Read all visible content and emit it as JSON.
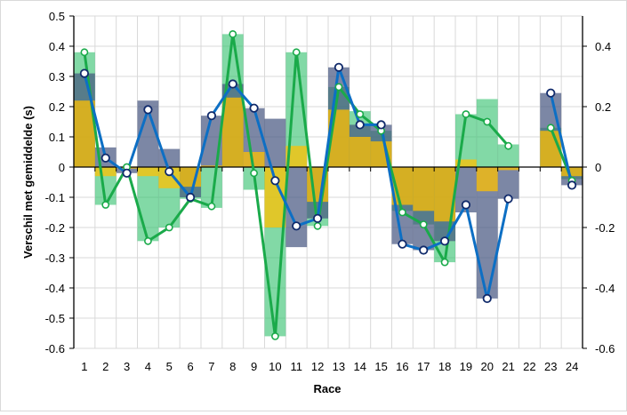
{
  "chart_data": {
    "type": "bar",
    "title": "",
    "xlabel": "Race",
    "ylabel": "Verschil met gemiddelde (s)",
    "categories": [
      "1",
      "2",
      "3",
      "4",
      "5",
      "6",
      "7",
      "8",
      "9",
      "10",
      "11",
      "12",
      "13",
      "14",
      "15",
      "16",
      "17",
      "18",
      "19",
      "20",
      "21",
      "22",
      "23",
      "24"
    ],
    "ylim": [
      -0.6,
      0.5
    ],
    "y_ticks": [
      "0.5",
      "0.4",
      "0.3",
      "0.2",
      "0.1",
      "0",
      "-0.1",
      "-0.2",
      "-0.3",
      "-0.4",
      "-0.5",
      "-0.6"
    ],
    "y_tick_values": [
      0.5,
      0.4,
      0.3,
      0.2,
      0.1,
      0,
      -0.1,
      -0.2,
      -0.3,
      -0.4,
      -0.5,
      -0.6
    ],
    "y2lim": [
      -0.6,
      0.5
    ],
    "y2_ticks": [
      "0.4",
      "0.2",
      "0",
      "-0.2",
      "-0.4",
      "-0.6"
    ],
    "y2_tick_values": [
      0.4,
      0.2,
      0,
      -0.2,
      -0.4,
      -0.6
    ],
    "grid": true,
    "legend": "none",
    "bar_series": [
      {
        "name": "series-green-bars",
        "color": "#2fbf6b",
        "opacity": 0.6,
        "values": [
          0.38,
          -0.125,
          0.0,
          -0.245,
          -0.2,
          -0.105,
          -0.135,
          0.44,
          -0.075,
          -0.56,
          0.38,
          -0.195,
          0.265,
          0.185,
          0.12,
          -0.145,
          -0.19,
          -0.315,
          0.175,
          0.225,
          0.075,
          null,
          0.13,
          -0.04
        ]
      },
      {
        "name": "series-slate-bars",
        "color": "#44547f",
        "opacity": 0.7,
        "values": [
          0.31,
          0.065,
          -0.02,
          0.22,
          0.06,
          -0.1,
          0.17,
          0.275,
          0.195,
          0.16,
          -0.265,
          -0.17,
          0.33,
          0.14,
          0.14,
          -0.255,
          -0.275,
          -0.245,
          -0.15,
          -0.435,
          -0.105,
          null,
          0.245,
          -0.06
        ]
      },
      {
        "name": "series-yellow-bars",
        "color": "#ffc000",
        "opacity": 0.75,
        "values": [
          0.22,
          -0.03,
          -0.005,
          -0.03,
          -0.07,
          -0.065,
          0.005,
          0.23,
          0.05,
          -0.2,
          0.07,
          -0.115,
          0.19,
          0.1,
          0.085,
          -0.125,
          -0.145,
          -0.18,
          0.025,
          -0.08,
          -0.01,
          null,
          0.12,
          -0.03
        ]
      }
    ],
    "line_series": [
      {
        "name": "series-green-line",
        "color": "#1aaa4a",
        "values": [
          0.38,
          -0.125,
          0.0,
          -0.245,
          -0.2,
          -0.105,
          -0.13,
          0.44,
          -0.02,
          -0.56,
          0.38,
          -0.195,
          0.265,
          0.175,
          0.12,
          -0.15,
          -0.19,
          -0.315,
          0.175,
          0.15,
          0.07,
          null,
          0.13,
          -0.045
        ]
      },
      {
        "name": "series-blue-line",
        "color": "#0d6fc4",
        "values": [
          0.31,
          0.03,
          -0.02,
          0.19,
          -0.015,
          -0.1,
          0.17,
          0.275,
          0.195,
          -0.045,
          -0.195,
          -0.17,
          0.33,
          0.14,
          0.14,
          -0.255,
          -0.275,
          -0.245,
          -0.125,
          -0.435,
          -0.105,
          null,
          0.245,
          -0.06
        ]
      }
    ]
  }
}
